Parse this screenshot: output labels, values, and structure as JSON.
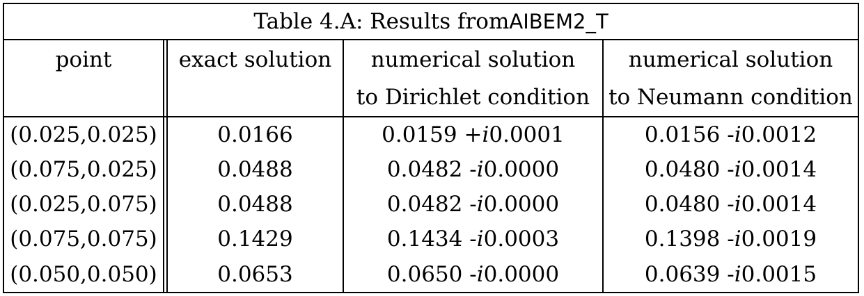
{
  "title": {
    "prefix": "Table 4.A: Results from ",
    "code": "AIBEM2_T"
  },
  "headers": {
    "point": "point",
    "exact": "exact solution",
    "dirichlet_line1": "numerical solution",
    "dirichlet_line2": "to Dirichlet condition",
    "neumann_line1": "numerical solution",
    "neumann_line2": "to Neumann condition"
  },
  "rows": [
    {
      "point": "(0.025,0.025)",
      "exact": "0.0166",
      "dirichlet": {
        "re": "0.0159 + ",
        "im": "0.0001"
      },
      "neumann": {
        "re": "0.0156 - ",
        "im": "0.0012"
      }
    },
    {
      "point": "(0.075,0.025)",
      "exact": "0.0488",
      "dirichlet": {
        "re": "0.0482 - ",
        "im": "0.0000"
      },
      "neumann": {
        "re": "0.0480 - ",
        "im": "0.0014"
      }
    },
    {
      "point": "(0.025,0.075)",
      "exact": "0.0488",
      "dirichlet": {
        "re": "0.0482 - ",
        "im": "0.0000"
      },
      "neumann": {
        "re": "0.0480 - ",
        "im": "0.0014"
      }
    },
    {
      "point": "(0.075,0.075)",
      "exact": "0.1429",
      "dirichlet": {
        "re": "0.1434 - ",
        "im": "0.0003"
      },
      "neumann": {
        "re": "0.1398 - ",
        "im": "0.0019"
      }
    },
    {
      "point": "(0.050,0.050)",
      "exact": "0.0653",
      "dirichlet": {
        "re": "0.0650 - ",
        "im": "0.0000"
      },
      "neumann": {
        "re": "0.0639 - ",
        "im": "0.0015"
      }
    }
  ]
}
